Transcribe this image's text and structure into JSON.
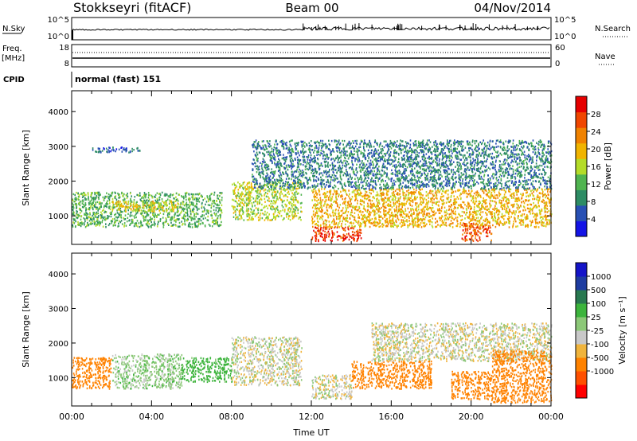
{
  "header": {
    "station": "Stokkseyri (fitACF)",
    "beam": "Beam 00",
    "date": "04/Nov/2014"
  },
  "strips": {
    "nsky_label": "N.Sky",
    "nsky_ticks_left": [
      "10^5",
      "10^0"
    ],
    "nsearch_label": "N.Search",
    "nsearch_ticks_right": [
      "10^5",
      "10^0"
    ],
    "freq_label": "Freq.",
    "freq_unit": "[MHz]",
    "freq_ticks": [
      "18",
      "8"
    ],
    "nave_label": "Nave",
    "nave_ticks": [
      "60",
      "0"
    ],
    "cpid_label": "CPID",
    "cpid_value": "normal (fast) 151"
  },
  "colors": {
    "power_scale": [
      "#1414e6",
      "#2850b4",
      "#2d8c64",
      "#50b450",
      "#b4dc28",
      "#f0b400",
      "#f08200",
      "#f04600",
      "#e60000"
    ],
    "velocity_scale": [
      "#ff0000",
      "#ff5000",
      "#ff8200",
      "#f0b43c",
      "#c8c8c8",
      "#8cc878",
      "#3cb43c",
      "#287850",
      "#1e3ca0",
      "#1414c8"
    ]
  },
  "chart_data": [
    {
      "type": "heatmap",
      "panel": "power",
      "ylabel": "Slant Range [km]",
      "ylim": [
        180,
        4600
      ],
      "yticks": [
        "4000",
        "3000",
        "2000",
        "1000"
      ],
      "x_domain_hours": [
        0,
        24
      ],
      "colorbar": {
        "label": "Power [dB]",
        "range": [
          0,
          32
        ],
        "ticks": [
          "28",
          "24",
          "20",
          "16",
          "12",
          "8",
          "4"
        ]
      },
      "echo_regions": [
        {
          "x": [
            0.0,
            7.5
          ],
          "y": [
            700,
            1700
          ],
          "value_db": 12
        },
        {
          "x": [
            2.0,
            5.5
          ],
          "y": [
            1150,
            1450
          ],
          "value_db": 18
        },
        {
          "x": [
            8.0,
            11.5
          ],
          "y": [
            900,
            2000
          ],
          "value_db": 16
        },
        {
          "x": [
            12.0,
            14.5
          ],
          "y": [
            300,
            700
          ],
          "value_db": 28
        },
        {
          "x": [
            12.0,
            24.0
          ],
          "y": [
            700,
            1800
          ],
          "value_db": 20
        },
        {
          "x": [
            19.5,
            21.0
          ],
          "y": [
            300,
            800
          ],
          "value_db": 26
        },
        {
          "x": [
            9.0,
            24.0
          ],
          "y": [
            1800,
            3200
          ],
          "value_db": 8
        },
        {
          "x": [
            1.0,
            3.5
          ],
          "y": [
            2850,
            3000
          ],
          "value_db": 6
        }
      ]
    },
    {
      "type": "heatmap",
      "panel": "velocity",
      "ylabel": "Slant Range [km]",
      "xlabel": "Time UT",
      "ylim": [
        180,
        4600
      ],
      "yticks": [
        "4000",
        "3000",
        "2000",
        "1000"
      ],
      "xticks": [
        "00:00",
        "04:00",
        "08:00",
        "12:00",
        "16:00",
        "20:00",
        "00:00"
      ],
      "x_domain_hours": [
        0,
        24
      ],
      "colorbar": {
        "label": "Velocity [m s⁻¹]",
        "ticks": [
          "1000",
          "500",
          "100",
          "25",
          "-25",
          "-100",
          "-500",
          "-1000"
        ]
      },
      "echo_regions": [
        {
          "x": [
            0.0,
            2.0
          ],
          "y": [
            700,
            1600
          ],
          "value_ms": -300
        },
        {
          "x": [
            2.0,
            5.5
          ],
          "y": [
            700,
            1700
          ],
          "value_ms": 60
        },
        {
          "x": [
            5.5,
            8.0
          ],
          "y": [
            900,
            1600
          ],
          "value_ms": 150
        },
        {
          "x": [
            8.0,
            11.5
          ],
          "y": [
            800,
            2200
          ],
          "value_ms": 0
        },
        {
          "x": [
            12.0,
            14.0
          ],
          "y": [
            400,
            1100
          ],
          "value_ms": 0
        },
        {
          "x": [
            14.0,
            18.0
          ],
          "y": [
            700,
            1500
          ],
          "value_ms": -400
        },
        {
          "x": [
            19.0,
            21.0
          ],
          "y": [
            400,
            1200
          ],
          "value_ms": -400
        },
        {
          "x": [
            15.0,
            24.0
          ],
          "y": [
            1500,
            2600
          ],
          "value_ms": 0
        },
        {
          "x": [
            21.0,
            24.0
          ],
          "y": [
            300,
            1800
          ],
          "value_ms": -250
        }
      ]
    }
  ]
}
